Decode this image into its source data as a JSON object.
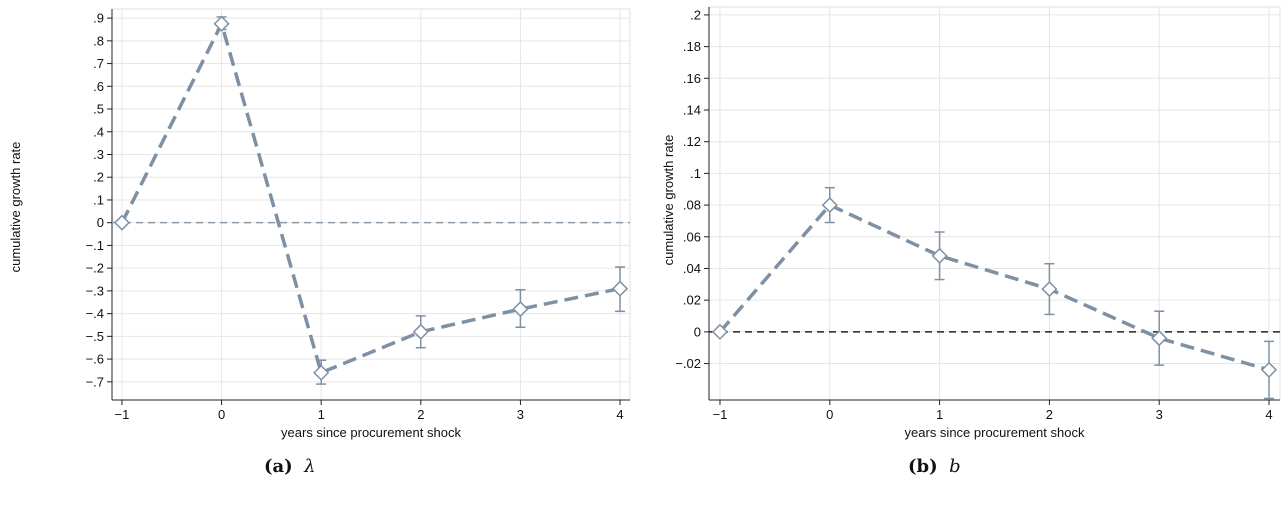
{
  "captions": [
    {
      "tag": "(a)",
      "sym": "λ"
    },
    {
      "tag": "(b)",
      "sym": "b"
    }
  ],
  "chart_data": [
    {
      "type": "line",
      "xlabel": "years since procurement shock",
      "ylabel": "cumulative growth rate",
      "x": [
        -1,
        0,
        1,
        2,
        3,
        4
      ],
      "xticks": [
        -1,
        0,
        1,
        2,
        3,
        4
      ],
      "xtick_labels": [
        "−1",
        "0",
        "1",
        "2",
        "3",
        "4"
      ],
      "xlim": [
        -1.1,
        4.1
      ],
      "ylim": [
        -0.78,
        0.94
      ],
      "yticks": [
        -0.7,
        -0.6,
        -0.5,
        -0.4,
        -0.3,
        -0.2,
        -0.1,
        0,
        0.1,
        0.2,
        0.3,
        0.4,
        0.5,
        0.6,
        0.7,
        0.8,
        0.9
      ],
      "ytick_labels": [
        "−.7",
        "−.6",
        "−.5",
        "−.4",
        "−.3",
        "−.2",
        "−.1",
        "0",
        ".1",
        ".2",
        ".3",
        ".4",
        ".5",
        ".6",
        ".7",
        ".8",
        ".9"
      ],
      "grid": true,
      "zero_line_color": "#8a9aaa",
      "series": [
        {
          "values": [
            0,
            0.875,
            -0.66,
            -0.48,
            -0.38,
            -0.29
          ],
          "ci_low": [
            0,
            0.85,
            -0.71,
            -0.55,
            -0.46,
            -0.39
          ],
          "ci_high": [
            0,
            0.905,
            -0.605,
            -0.41,
            -0.295,
            -0.195
          ],
          "color": "#7e91a4",
          "marker": "diamond-hollow",
          "line_style": "dashed"
        }
      ]
    },
    {
      "type": "line",
      "xlabel": "years since procurement shock",
      "ylabel": "cumulative growth rate",
      "x": [
        -1,
        0,
        1,
        2,
        3,
        4
      ],
      "xticks": [
        -1,
        0,
        1,
        2,
        3,
        4
      ],
      "xtick_labels": [
        "−1",
        "0",
        "1",
        "2",
        "3",
        "4"
      ],
      "xlim": [
        -1.1,
        4.1
      ],
      "ylim": [
        -0.043,
        0.205
      ],
      "yticks": [
        -0.02,
        0,
        0.02,
        0.04,
        0.06,
        0.08,
        0.1,
        0.12,
        0.14,
        0.16,
        0.18,
        0.2
      ],
      "ytick_labels": [
        "−.02",
        "0",
        ".02",
        ".04",
        ".06",
        ".08",
        ".1",
        ".12",
        ".14",
        ".16",
        ".18",
        ".2"
      ],
      "grid": true,
      "zero_line_color": "#222222",
      "series": [
        {
          "values": [
            0,
            0.08,
            0.048,
            0.027,
            -0.004,
            -0.024
          ],
          "ci_low": [
            0,
            0.069,
            0.033,
            0.011,
            -0.021,
            -0.042
          ],
          "ci_high": [
            0,
            0.091,
            0.063,
            0.043,
            0.013,
            -0.006
          ],
          "color": "#7e91a4",
          "marker": "diamond-hollow",
          "line_style": "dashed"
        }
      ]
    }
  ]
}
